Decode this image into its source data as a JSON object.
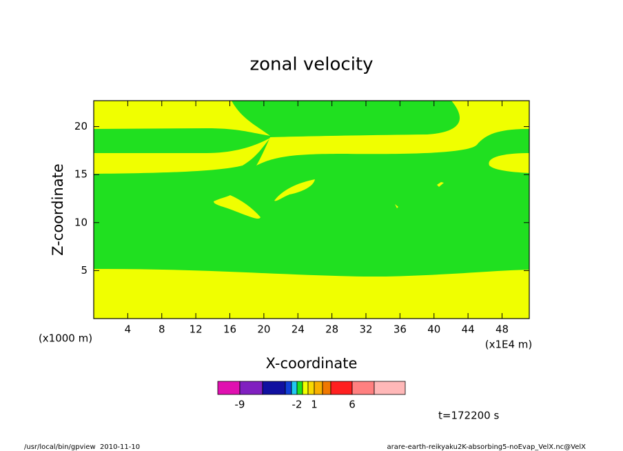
{
  "chart_data": {
    "type": "contour",
    "title": "zonal velocity",
    "x_label": "X-coordinate",
    "y_label": "Z-coordinate",
    "x_unit": "(x1E4 m)",
    "y_unit": "(x1000 m)",
    "xlim": [
      0,
      51.2
    ],
    "ylim": [
      0,
      22.7
    ],
    "xticks": [
      4,
      8,
      12,
      16,
      20,
      24,
      28,
      32,
      36,
      40,
      44,
      48
    ],
    "yticks": [
      5,
      10,
      15,
      20
    ],
    "colorbar": {
      "colors": [
        "#e010b0",
        "#8020c0",
        "#1010a0",
        "#1040d8",
        "#20c8f0",
        "#20e020",
        "#f0ff00",
        "#f8d800",
        "#f8b000",
        "#f07800",
        "#ff2020",
        "#ff8080",
        "#ffb8b8"
      ],
      "ticks": [
        -9,
        -2,
        1,
        6
      ]
    },
    "time_label": "t=172200 s"
  },
  "footer": {
    "left": "/usr/local/bin/gpview  2010-11-10",
    "right": "arare-earth-reikyaku2K-absorbing5-noEvap_VelX.nc@VelX"
  }
}
